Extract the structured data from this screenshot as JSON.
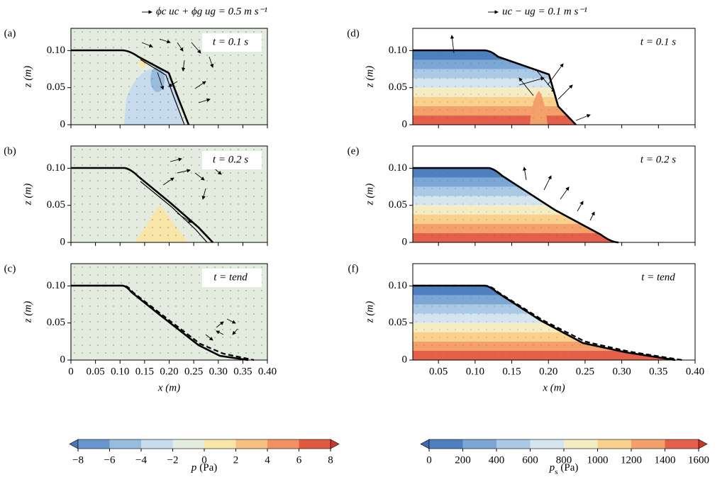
{
  "chart_data": [
    {
      "type": "contour",
      "quiver_key": "ϕc uc + ϕg ug = 0.5 m s⁻¹",
      "xlabel": "x (m)",
      "ylabel": "z (m)",
      "xlim": [
        0,
        0.4
      ],
      "xticks": [
        0,
        0.05,
        {
          "value": 0.1,
          "label": "0.10"
        },
        0.15,
        {
          "value": 0.2,
          "label": "0.20"
        },
        0.25,
        {
          "value": 0.3,
          "label": "0.30"
        },
        0.35,
        {
          "value": 0.4,
          "label": "0.40"
        }
      ],
      "ylim": [
        0,
        0.13
      ],
      "yticks": [
        0,
        0.05,
        {
          "value": 0.1,
          "label": "0.10"
        }
      ],
      "panels": [
        {
          "label": "(a)",
          "time": "t = 0.1 s"
        },
        {
          "label": "(b)",
          "time": "t = 0.2 s"
        },
        {
          "label": "(c)",
          "time": "t = tend"
        }
      ],
      "colorbar": {
        "label_symbol": "p",
        "label_unit": "(Pa)",
        "ticks": [
          {
            "value": -8,
            "label": "−8"
          },
          {
            "value": -6,
            "label": "−6"
          },
          {
            "value": -4,
            "label": "−4"
          },
          {
            "value": -2,
            "label": "−2"
          },
          0,
          2,
          4,
          6,
          8
        ],
        "colors": [
          "#6a97cb",
          "#97bcdc",
          "#c6dcec",
          "#e4ecdf",
          "#f8e6a8",
          "#f8c080",
          "#f19060",
          "#e05a40"
        ],
        "under_color": "#4a76b8",
        "over_color": "#c93a2c"
      }
    },
    {
      "type": "contour",
      "quiver_key": "uc − ug = 0.1 m s⁻¹",
      "xlabel": "x (m)",
      "ylabel": "z (m)",
      "xlim": [
        0.015,
        0.4
      ],
      "xticks": [
        0.05,
        {
          "value": 0.1,
          "label": "0.10"
        },
        0.15,
        {
          "value": 0.2,
          "label": "0.20"
        },
        0.25,
        {
          "value": 0.3,
          "label": "0.30"
        },
        0.35,
        {
          "value": 0.4,
          "label": "0.40"
        }
      ],
      "ylim": [
        0,
        0.13
      ],
      "yticks": [
        0,
        0.05,
        {
          "value": 0.1,
          "label": "0.10"
        }
      ],
      "panels": [
        {
          "label": "(d)",
          "time": "t = 0.1 s"
        },
        {
          "label": "(e)",
          "time": "t = 0.2 s"
        },
        {
          "label": "(f)",
          "time": "t = tend"
        }
      ],
      "colorbar": {
        "label_symbol": "p",
        "label_subscript": "s",
        "label_unit": "(Pa)",
        "ticks": [
          0,
          200,
          400,
          600,
          800,
          1000,
          1200,
          1400,
          1600
        ],
        "colors": [
          "#4e7fbf",
          "#7ca6d3",
          "#a9c9e4",
          "#d4e5ef",
          "#f4ecc2",
          "#f9d08c",
          "#f4a06a",
          "#e4604a"
        ],
        "under_color": "#3f6aad",
        "over_color": "#c93a2c"
      }
    }
  ]
}
